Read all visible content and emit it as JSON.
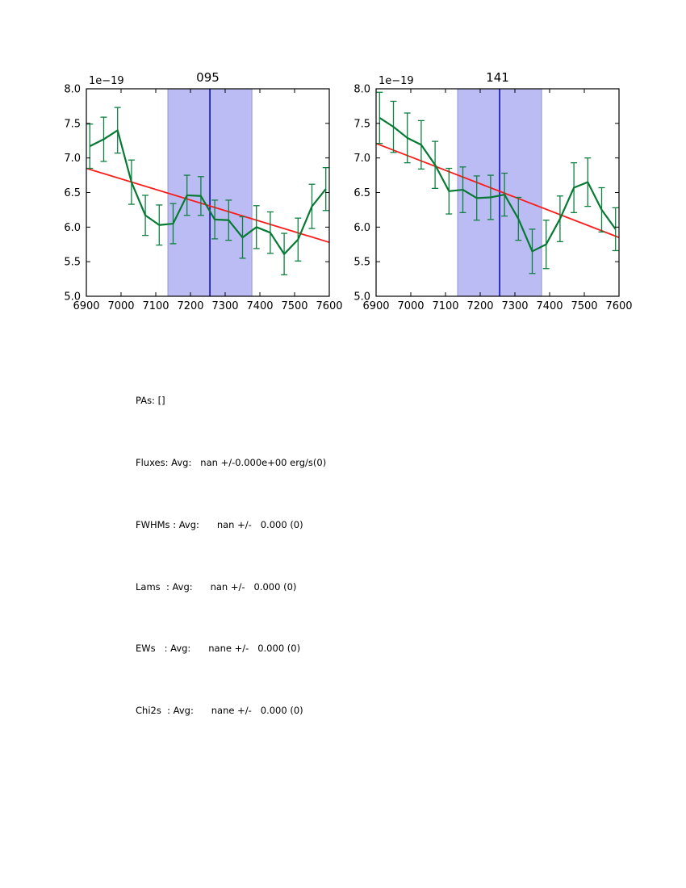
{
  "figure": {
    "offset_label": "1e−19",
    "colors": {
      "axis": "#000000",
      "data_line": "#067a33",
      "error_bar": "#0e8040",
      "trend_line": "#fb1b1b",
      "band_fill": "#bcbcf5",
      "band_edge": "#9595cf",
      "marker_line": "#0b0bc4",
      "text": "#000000"
    },
    "axis": {
      "xlim": [
        6900,
        7600
      ],
      "ylim": [
        5.0,
        8.0
      ],
      "xtick_labels": [
        "6900",
        "7000",
        "7100",
        "7200",
        "7300",
        "7400",
        "7500",
        "7600"
      ],
      "xtick_values": [
        6900,
        7000,
        7100,
        7200,
        7300,
        7400,
        7500,
        7600
      ],
      "ytick_labels": [
        "5.0",
        "5.5",
        "6.0",
        "6.5",
        "7.0",
        "7.5",
        "8.0"
      ],
      "ytick_values": [
        5.0,
        5.5,
        6.0,
        6.5,
        7.0,
        7.5,
        8.0
      ]
    }
  },
  "chart_data": [
    {
      "type": "line",
      "title": "095",
      "xlabel": "",
      "ylabel": "",
      "offset_label": "1e−19",
      "xlim": [
        6900,
        7600
      ],
      "ylim": [
        5.0,
        8.0
      ],
      "grid": false,
      "legend": "none",
      "x": [
        6910,
        6950,
        6990,
        7030,
        7070,
        7110,
        7150,
        7190,
        7230,
        7270,
        7310,
        7350,
        7390,
        7430,
        7470,
        7510,
        7550,
        7590
      ],
      "values": [
        7.17,
        7.27,
        7.4,
        6.65,
        6.17,
        6.03,
        6.05,
        6.46,
        6.45,
        6.11,
        6.1,
        5.85,
        6.0,
        5.92,
        5.61,
        5.82,
        6.3,
        6.55
      ],
      "errors": [
        0.32,
        0.32,
        0.33,
        0.32,
        0.29,
        0.29,
        0.29,
        0.29,
        0.28,
        0.28,
        0.29,
        0.3,
        0.31,
        0.3,
        0.3,
        0.31,
        0.32,
        0.31
      ],
      "trend": {
        "x": [
          6900,
          7600
        ],
        "y": [
          6.85,
          5.78
        ]
      },
      "band": {
        "x0": 7135,
        "x1": 7377
      },
      "vline": 7256
    },
    {
      "type": "line",
      "title": "141",
      "xlabel": "",
      "ylabel": "",
      "offset_label": "1e−19",
      "xlim": [
        6900,
        7600
      ],
      "ylim": [
        5.0,
        8.0
      ],
      "grid": false,
      "legend": "none",
      "x": [
        6910,
        6950,
        6990,
        7030,
        7070,
        7110,
        7150,
        7190,
        7230,
        7270,
        7310,
        7350,
        7390,
        7430,
        7470,
        7510,
        7550,
        7590
      ],
      "values": [
        7.58,
        7.45,
        7.29,
        7.19,
        6.9,
        6.52,
        6.54,
        6.42,
        6.43,
        6.47,
        6.12,
        5.65,
        5.75,
        6.12,
        6.57,
        6.65,
        6.25,
        5.97
      ],
      "errors": [
        0.37,
        0.37,
        0.36,
        0.35,
        0.34,
        0.33,
        0.33,
        0.32,
        0.32,
        0.31,
        0.31,
        0.32,
        0.35,
        0.33,
        0.36,
        0.35,
        0.32,
        0.31
      ],
      "trend": {
        "x": [
          6900,
          7600
        ],
        "y": [
          7.21,
          5.85
        ]
      },
      "band": {
        "x0": 7135,
        "x1": 7377
      },
      "vline": 7256
    }
  ],
  "stats": {
    "lines": [
      "PAs: []",
      "Fluxes: Avg:   nan +/-0.000e+00 erg/s(0)",
      "FWHMs : Avg:      nan +/-   0.000 (0)",
      "Lams  : Avg:      nan +/-   0.000 (0)",
      "EWs   : Avg:      nane +/-   0.000 (0)",
      "Chi2s  : Avg:      nane +/-   0.000 (0)"
    ]
  }
}
